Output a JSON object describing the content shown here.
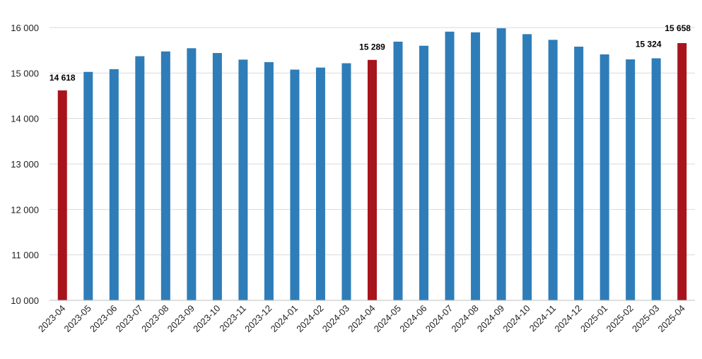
{
  "chart_data": {
    "type": "bar",
    "title": "",
    "xlabel": "",
    "ylabel": "",
    "categories": [
      "2023-04",
      "2023-05",
      "2023-06",
      "2023-07",
      "2023-08",
      "2023-09",
      "2023-10",
      "2023-11",
      "2023-12",
      "2024-01",
      "2024-02",
      "2024-03",
      "2024-04",
      "2024-05",
      "2024-06",
      "2024-07",
      "2024-08",
      "2024-09",
      "2024-10",
      "2024-11",
      "2024-12",
      "2025-01",
      "2025-02",
      "2025-03",
      "2025-04"
    ],
    "values": [
      14618,
      15025,
      15085,
      15370,
      15475,
      15545,
      15440,
      15295,
      15240,
      15075,
      15120,
      15215,
      15289,
      15690,
      15600,
      15910,
      15895,
      15985,
      15855,
      15730,
      15580,
      15410,
      15300,
      15324,
      15658
    ],
    "highlighted": [
      "2023-04",
      "2024-04",
      "2025-04"
    ],
    "data_labels": [
      {
        "category": "2023-04",
        "text": "14 618"
      },
      {
        "category": "2024-04",
        "text": "15 289"
      },
      {
        "category": "2025-03",
        "text": "15 324"
      },
      {
        "category": "2025-04",
        "text": "15 658"
      }
    ],
    "ylim": [
      10000,
      16000
    ],
    "yticks": [
      10000,
      11000,
      12000,
      13000,
      14000,
      15000,
      16000
    ],
    "ytick_labels": [
      "10 000",
      "11 000",
      "12 000",
      "13 000",
      "14 000",
      "15 000",
      "16 000"
    ],
    "grid": true,
    "legend": "none",
    "colors": {
      "default": "#2E7DB8",
      "highlight": "#A8141C",
      "grid": "#D9D9D9",
      "axis": "#BFBFBF"
    }
  }
}
